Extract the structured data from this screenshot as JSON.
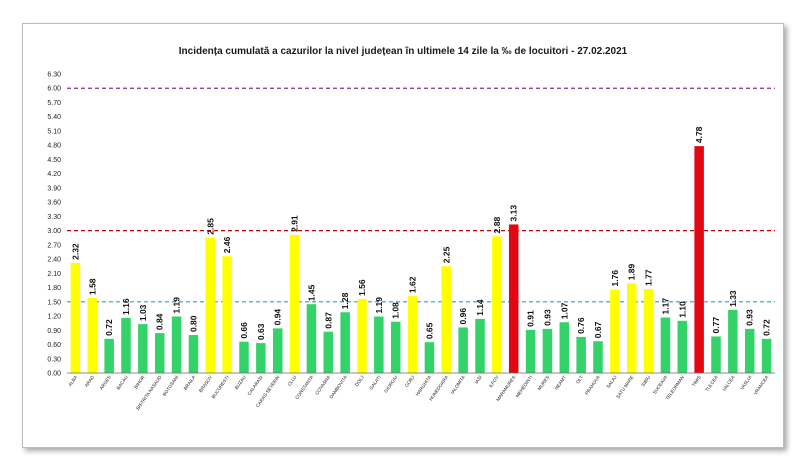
{
  "chart_data": {
    "type": "bar",
    "title": "Incidența cumulată a cazurilor la nivel județean în ultimele 14 zile la ‰ de locuitori - 27.02.2021",
    "xlabel": "",
    "ylabel": "",
    "ylim": [
      0,
      6.3
    ],
    "yticks": [
      "0.00",
      "0.30",
      "0.60",
      "0.90",
      "1.20",
      "1.50",
      "1.80",
      "2.10",
      "2.40",
      "2.70",
      "3.00",
      "3.30",
      "3.60",
      "3.90",
      "4.20",
      "4.50",
      "4.80",
      "5.10",
      "5.40",
      "5.70",
      "6.00",
      "6.30"
    ],
    "thresholds": [
      {
        "value": 6.0,
        "color": "#7030a0"
      },
      {
        "value": 3.0,
        "color": "#c00000"
      },
      {
        "value": 1.5,
        "color": "#2aa0b0"
      }
    ],
    "colors": {
      "green": "#33d36a",
      "yellow": "#ffff00",
      "red": "#e30613"
    },
    "categories": [
      "ALBA",
      "ARAD",
      "ARGES",
      "BACAU",
      "BIHOR",
      "BISTRITA NASAUD",
      "BOTOSANI",
      "BRAILA",
      "BRASOV",
      "BUCURESTI",
      "BUZAU",
      "CALARASI",
      "CARAS-SEVERIN",
      "CLUJ",
      "CONSTANTA",
      "COVASNA",
      "DAMBOVITA",
      "DOLJ",
      "GALATI",
      "GIURGIU",
      "GORJ",
      "HARGHITA",
      "HUNEDOARA",
      "IALOMITA",
      "IASI",
      "ILFOV",
      "MARAMURES",
      "MEHEDINTI",
      "MURES",
      "NEAMT",
      "OLT",
      "PRAHOVA",
      "SALAJ",
      "SATU MARE",
      "SIBIU",
      "SUCEAVA",
      "TELEORMAN",
      "TIMIS",
      "TULCEA",
      "VALCEA",
      "VASLUI",
      "VRANCEA"
    ],
    "values": [
      2.32,
      1.58,
      0.72,
      1.16,
      1.03,
      0.84,
      1.19,
      0.8,
      2.85,
      2.46,
      0.66,
      0.63,
      0.94,
      2.91,
      1.45,
      0.87,
      1.28,
      1.56,
      1.19,
      1.08,
      1.62,
      0.65,
      2.25,
      0.96,
      1.14,
      2.88,
      3.13,
      0.91,
      0.93,
      1.07,
      0.76,
      0.67,
      1.76,
      1.89,
      1.77,
      1.17,
      1.1,
      4.78,
      0.77,
      1.33,
      0.93,
      0.72
    ],
    "value_labels": [
      "2.32",
      "1.58",
      "0.72",
      "1.16",
      "1.03",
      "0.84",
      "1.19",
      "0.80",
      "2.85",
      "2.46",
      "0.66",
      "0.63",
      "0.94",
      "2.91",
      "1.45",
      "0.87",
      "1.28",
      "1.56",
      "1.19",
      "1.08",
      "1.62",
      "0.65",
      "2.25",
      "0.96",
      "1.14",
      "2.88",
      "3.13",
      "0.91",
      "0.93",
      "1.07",
      "0.76",
      "0.67",
      "1.76",
      "1.89",
      "1.77",
      "1.17",
      "1.10",
      "4.78",
      "0.77",
      "1.33",
      "0.93",
      "0.72"
    ]
  }
}
